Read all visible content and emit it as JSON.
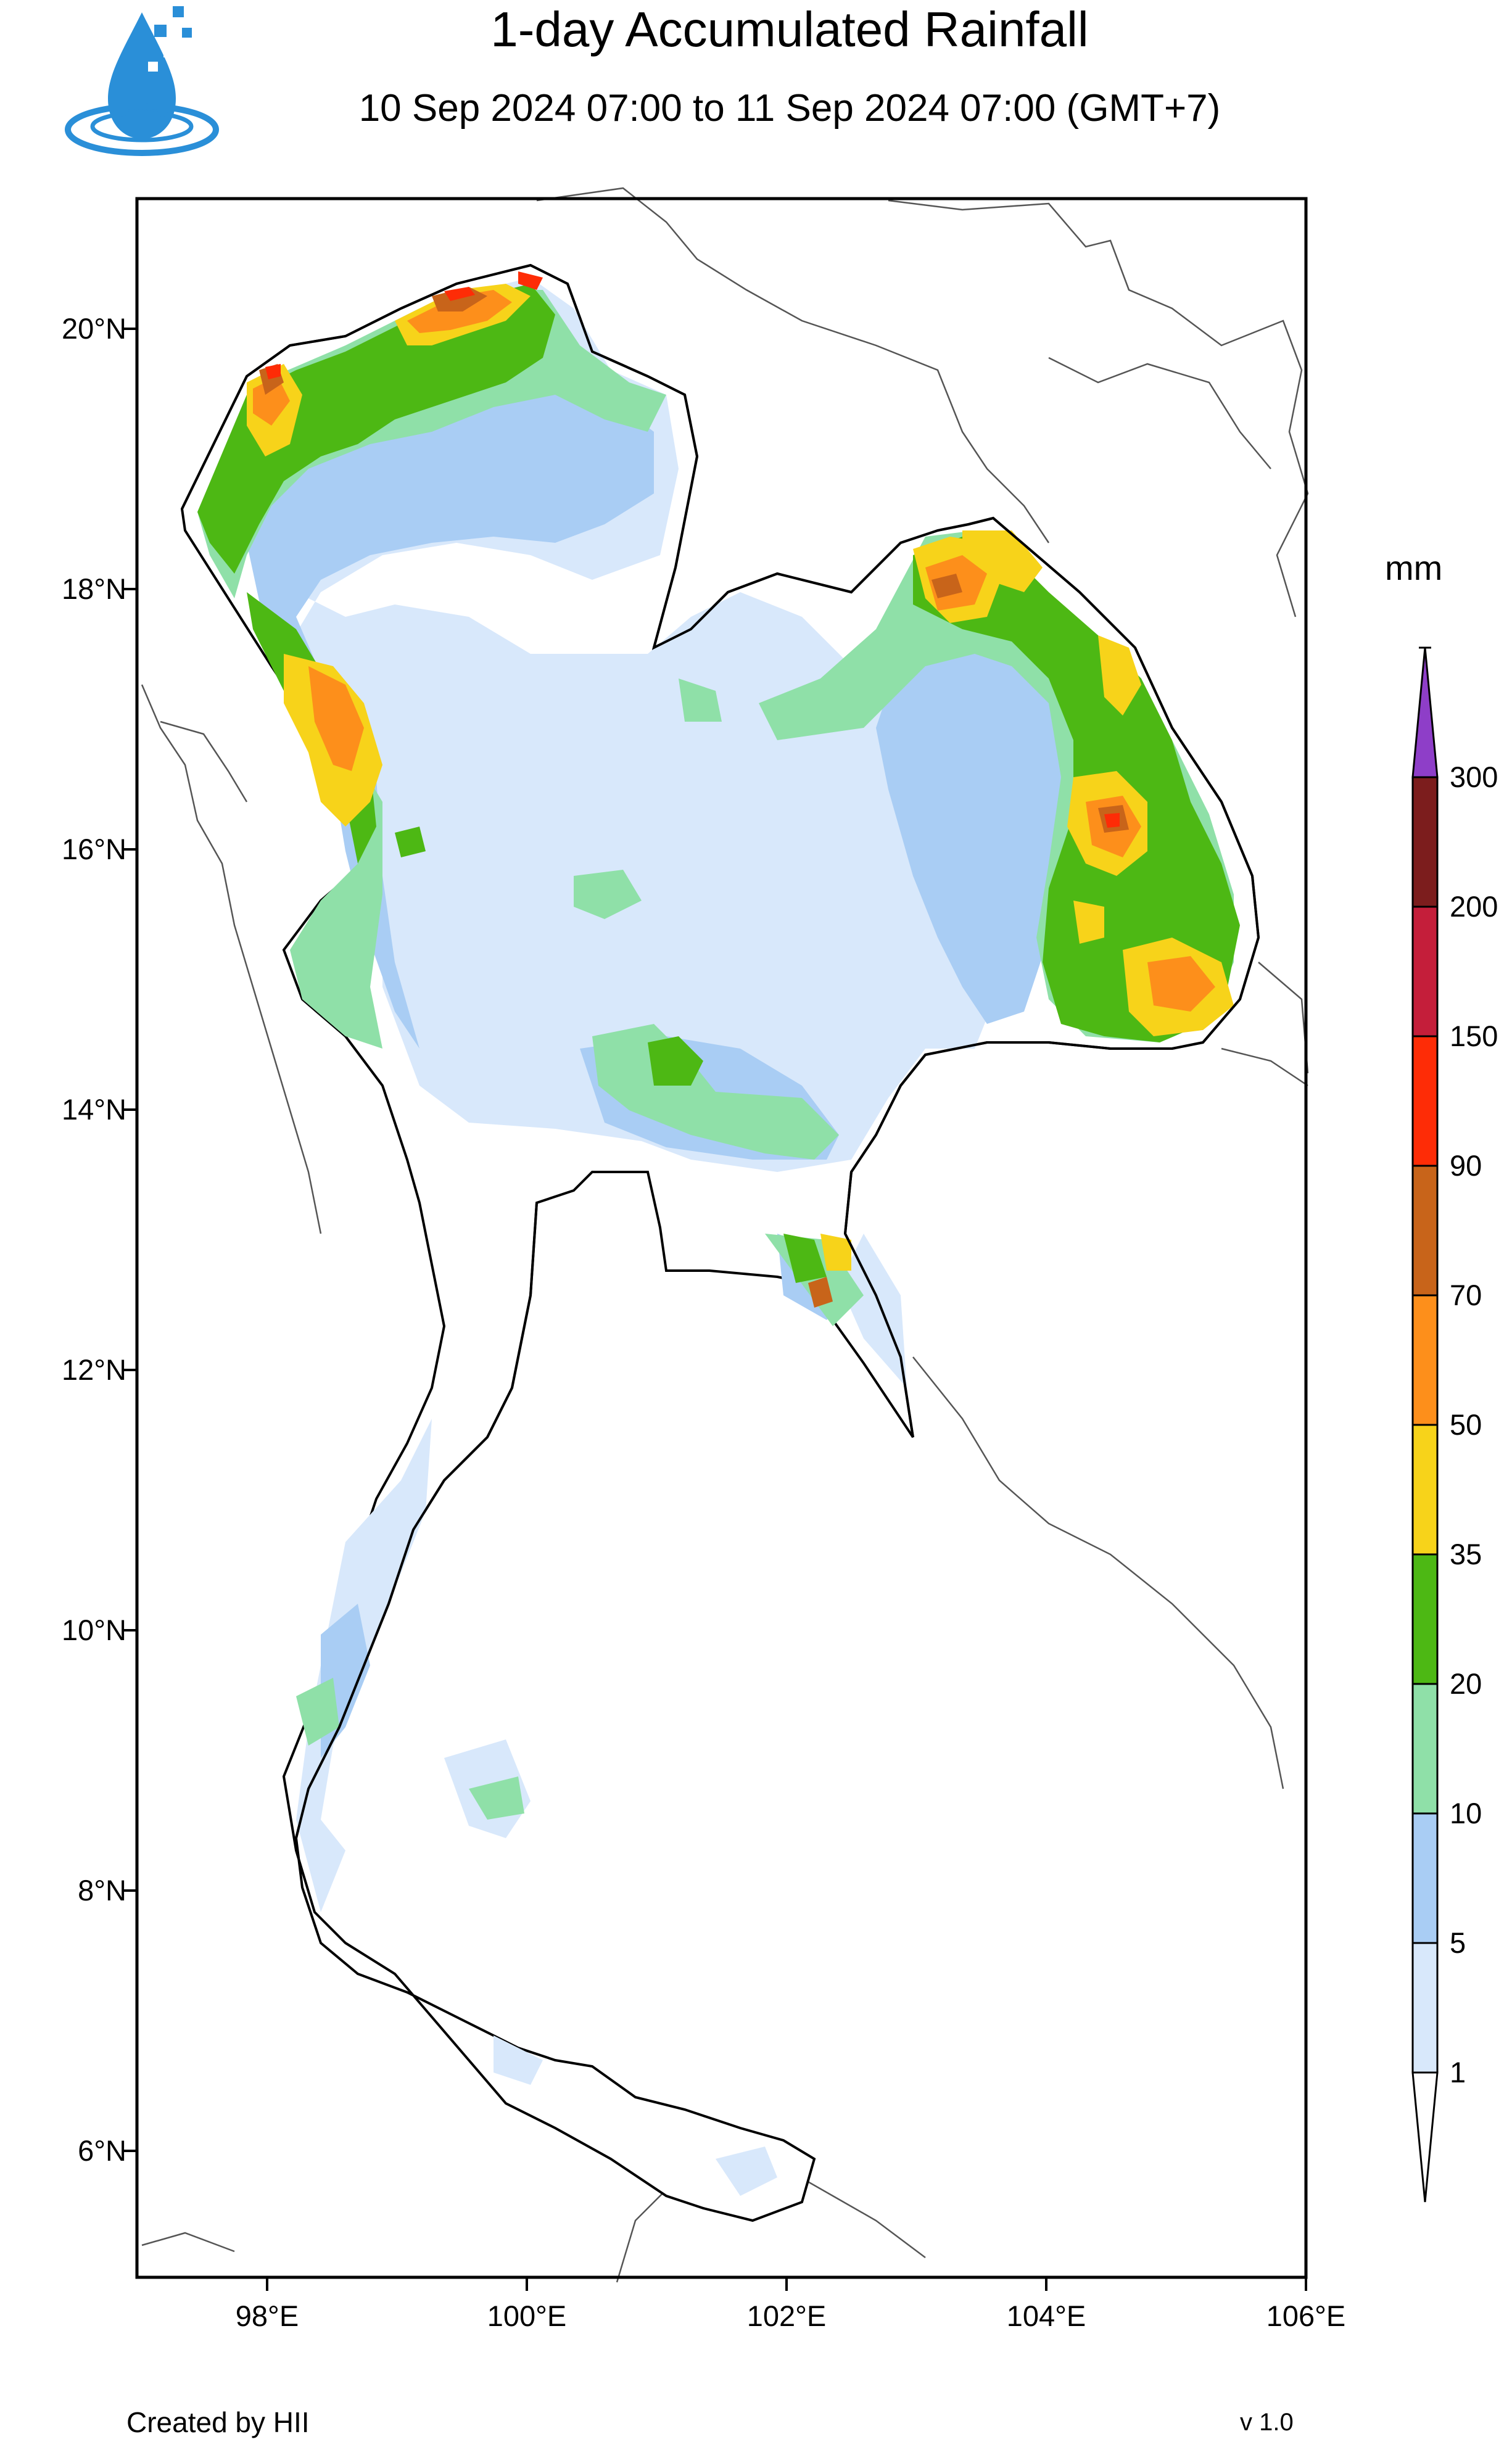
{
  "header": {
    "title": "1-day Accumulated Rainfall",
    "subtitle": "10 Sep 2024 07:00 to 11 Sep 2024 07:00 (GMT+7)",
    "logo_icon": "water-drop-logo-icon"
  },
  "map": {
    "region": "Thailand",
    "lat_ticks": [
      "20°N",
      "18°N",
      "16°N",
      "14°N",
      "12°N",
      "10°N",
      "8°N",
      "6°N"
    ],
    "lon_ticks": [
      "98°E",
      "100°E",
      "102°E",
      "104°E",
      "106°E"
    ],
    "lat_range": [
      5.0,
      21.0
    ],
    "lon_range": [
      97.0,
      106.0
    ]
  },
  "colorbar": {
    "units": "mm",
    "levels": [
      "300",
      "200",
      "150",
      "90",
      "70",
      "50",
      "35",
      "20",
      "10",
      "5",
      "1"
    ],
    "colors": [
      "#8e3ec8",
      "#7c1d1d",
      "#c41e3a",
      "#fe2c06",
      "#c8641a",
      "#fd8f1b",
      "#f7d31a",
      "#4db814",
      "#8fe0a8",
      "#a9cdf4",
      "#d8e8fb",
      "#ffffff"
    ]
  },
  "footer": {
    "credit": "Created by HII",
    "version": "v 1.0"
  }
}
